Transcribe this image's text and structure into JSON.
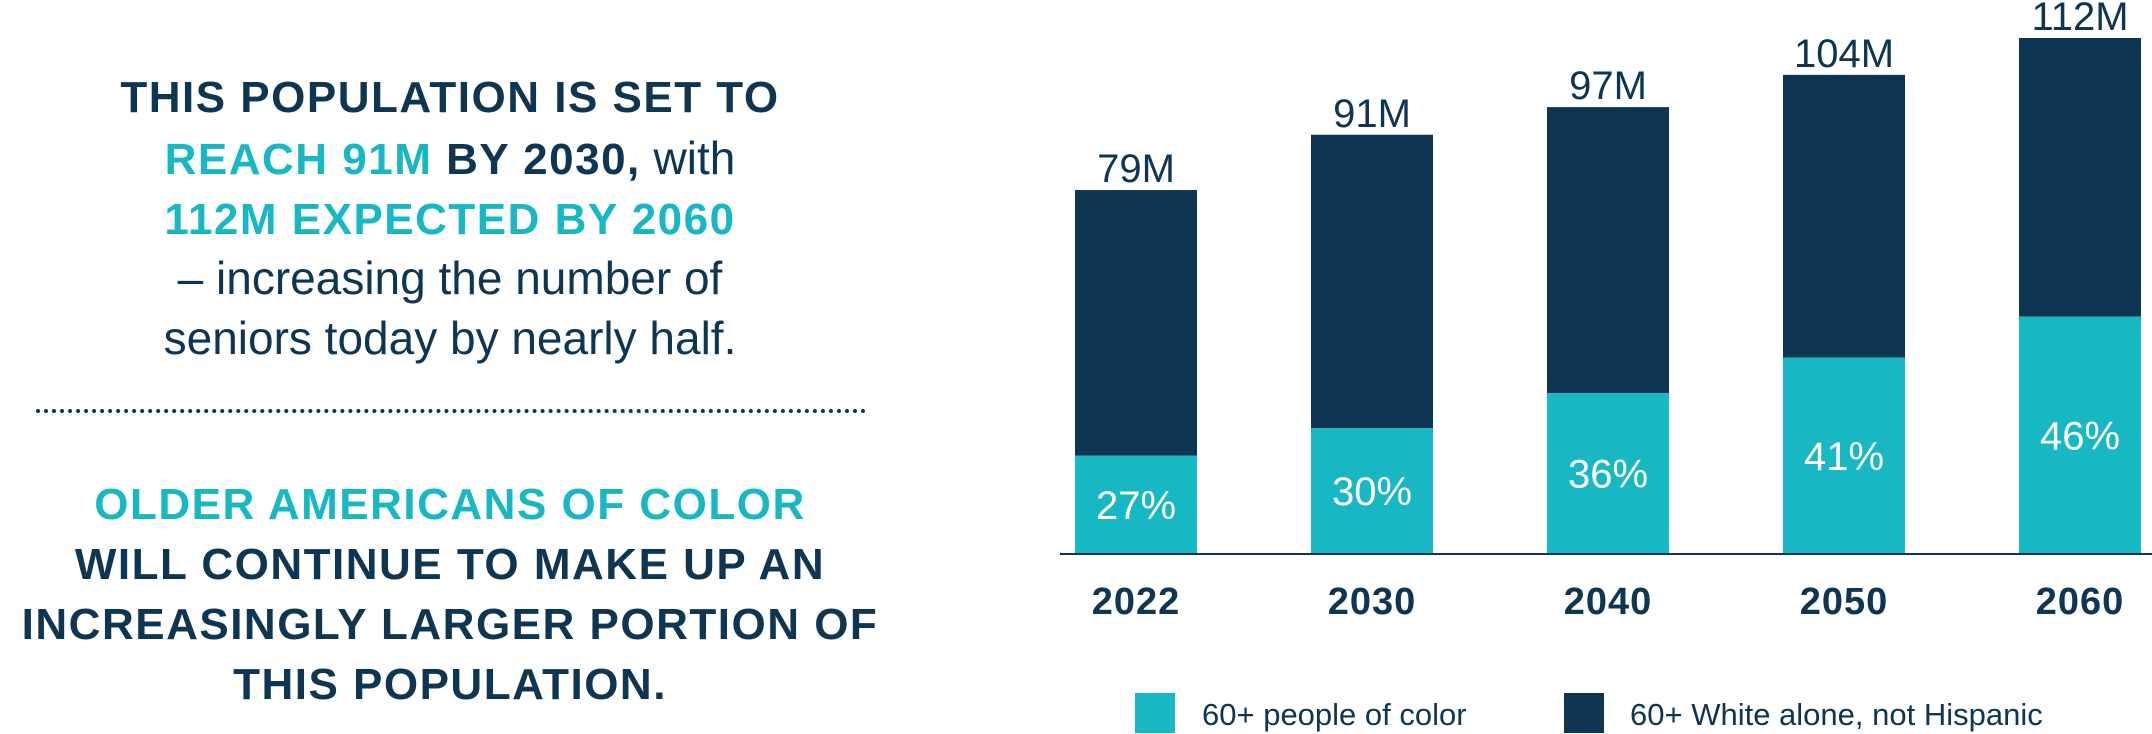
{
  "text": {
    "heading1": {
      "line1": "THIS POPULATION IS SET TO",
      "line2_teal": "REACH 91M",
      "line2_dark": " BY 2030,",
      "line2_plain": " with",
      "line3": "112M EXPECTED BY 2060",
      "line4": "– increasing the number of",
      "line5": "seniors today by nearly half."
    },
    "heading2": {
      "line1": "OLDER AMERICANS OF COLOR",
      "line2": "WILL CONTINUE TO MAKE UP AN",
      "line3": "INCREASINGLY LARGER PORTION OF",
      "line4": "THIS POPULATION."
    }
  },
  "colors": {
    "dark": "#0e3551",
    "teal": "#17b7c3",
    "axis": "#0e3551"
  },
  "chart_data": {
    "type": "bar",
    "stacked": true,
    "categories": [
      "2022",
      "2030",
      "2040",
      "2050",
      "2060"
    ],
    "totals": [
      79,
      91,
      97,
      104,
      112
    ],
    "total_labels": [
      "79M",
      "91M",
      "97M",
      "104M",
      "112M"
    ],
    "series": [
      {
        "name": "60+ people of color",
        "color": "#17b7c3",
        "share": [
          0.27,
          0.3,
          0.36,
          0.41,
          0.46
        ],
        "labels": [
          "27%",
          "30%",
          "36%",
          "41%",
          "46%"
        ]
      },
      {
        "name": "60+ White alone, not Hispanic",
        "color": "#0e3551",
        "share": [
          0.73,
          0.7,
          0.64,
          0.59,
          0.54
        ]
      }
    ],
    "title": "",
    "xlabel": "",
    "ylabel": "",
    "ylim": [
      0,
      112
    ],
    "grid": false,
    "legend_position": "bottom"
  }
}
